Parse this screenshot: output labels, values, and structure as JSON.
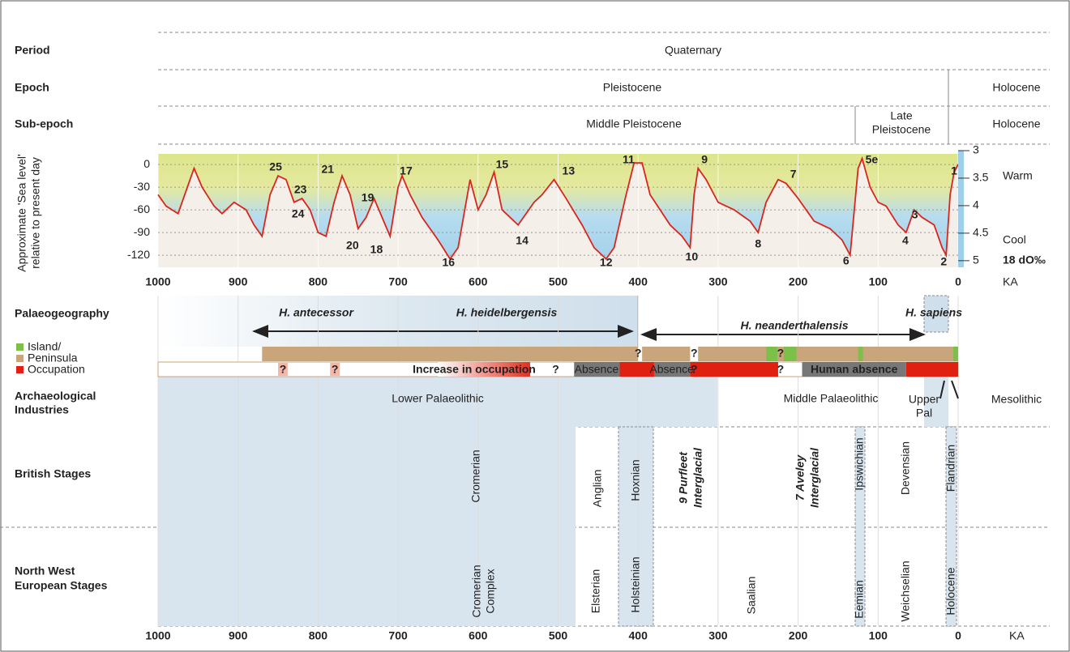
{
  "rows": {
    "period": {
      "label": "Period",
      "quaternary": "Quaternary"
    },
    "epoch": {
      "label": "Epoch",
      "pleistocene": "Pleistocene",
      "holocene": "Holocene"
    },
    "sub_epoch": {
      "label": "Sub-epoch",
      "middle": "Middle Pleistocene",
      "late_1": "Late",
      "late_2": "Pleistocene",
      "holocene": "Holocene"
    }
  },
  "sea_level": {
    "y_label_1": "Approximate 'Sea level'",
    "y_label_2": "relative to present day",
    "xlim": [
      1000,
      0
    ],
    "xticks": [
      1000,
      900,
      800,
      700,
      600,
      500,
      400,
      300,
      200,
      100,
      0
    ],
    "x_unit": "KA",
    "ylim": [
      -136,
      14
    ],
    "yticks": [
      0,
      -30,
      -60,
      -90,
      -120
    ],
    "d18o_lim": [
      3,
      5.12
    ],
    "d18o_ticks": [
      3,
      3.5,
      4,
      4.5,
      5
    ],
    "d18o_label": "18 dO‰",
    "warm": "Warm",
    "cool": "Cool",
    "x": [
      1000,
      990,
      975,
      960,
      955,
      945,
      930,
      920,
      905,
      890,
      880,
      870,
      860,
      850,
      840,
      830,
      820,
      810,
      800,
      790,
      780,
      770,
      760,
      750,
      740,
      730,
      720,
      710,
      700,
      695,
      685,
      670,
      650,
      635,
      625,
      610,
      600,
      590,
      580,
      570,
      550,
      530,
      520,
      505,
      490,
      470,
      455,
      440,
      430,
      415,
      405,
      395,
      385,
      360,
      345,
      335,
      330,
      325,
      315,
      300,
      280,
      260,
      250,
      240,
      225,
      215,
      200,
      180,
      160,
      145,
      135,
      125,
      120,
      110,
      100,
      90,
      75,
      65,
      55,
      45,
      30,
      20,
      15,
      10,
      5,
      0
    ],
    "values": [
      -40,
      -55,
      -65,
      -20,
      -5,
      -30,
      -55,
      -65,
      -50,
      -60,
      -80,
      -95,
      -40,
      -15,
      -20,
      -50,
      -45,
      -60,
      -90,
      -95,
      -50,
      -15,
      -40,
      -85,
      -70,
      -45,
      -70,
      -95,
      -30,
      -15,
      -40,
      -70,
      -100,
      -125,
      -110,
      -20,
      -60,
      -40,
      -10,
      -60,
      -80,
      -50,
      -40,
      -20,
      -45,
      -80,
      -110,
      -125,
      -110,
      -40,
      2,
      2,
      -40,
      -80,
      -95,
      -110,
      -40,
      -5,
      -20,
      -50,
      -60,
      -75,
      -90,
      -50,
      -20,
      -25,
      -45,
      -75,
      -85,
      -100,
      -120,
      -5,
      8,
      -30,
      -50,
      -55,
      -80,
      -90,
      -60,
      -70,
      -80,
      -110,
      -120,
      -40,
      -10,
      0
    ],
    "stages": [
      "25",
      "23",
      "24",
      "21",
      "19",
      "20",
      "18",
      "17",
      "15",
      "14",
      "13",
      "16",
      "12",
      "11",
      "10",
      "9",
      "8",
      "7",
      "6",
      "5e",
      "4",
      "3",
      "2",
      "1"
    ]
  },
  "palaeogeography": {
    "label": "Palaeogeography",
    "antecessor": "H. antecessor",
    "heidelbergensis": "H. heidelbergensis",
    "neanderthalensis": "H. neanderthalensis",
    "sapiens": "H. sapiens",
    "legend_island": "Island/",
    "legend_peninsula": "Peninsula",
    "legend_occupation": "Occupation",
    "increase": "Increase in occupation",
    "absence_1": "Absence",
    "absence_2": "Absence",
    "human_absence": "Human absence",
    "question_marks": [
      "?",
      "?",
      "?",
      "?",
      "?",
      "?",
      "?",
      "?"
    ]
  },
  "industries": {
    "label_1": "Archaeological",
    "label_2": "Industries",
    "lower": "Lower Palaeolithic",
    "middle": "Middle Palaeolithic",
    "upper_1": "Upper",
    "upper_2": "Pal",
    "mesolithic": "Mesolithic"
  },
  "british": {
    "label": "British Stages",
    "stages": [
      "Cromerian",
      "Anglian",
      "Hoxnian",
      "9 Purfleet",
      "Interglacial",
      "7 Aveley",
      "Interglacial",
      "Ipswichian",
      "Devensian",
      "Flandrian"
    ]
  },
  "nw_europe": {
    "label_1": "North West",
    "label_2": "European Stages",
    "stages": [
      "Cromerian",
      "Complex",
      "Elsterian",
      "Holsteinian",
      "Saalian",
      "Eemian",
      "Weichselian",
      "Holocene"
    ]
  }
}
